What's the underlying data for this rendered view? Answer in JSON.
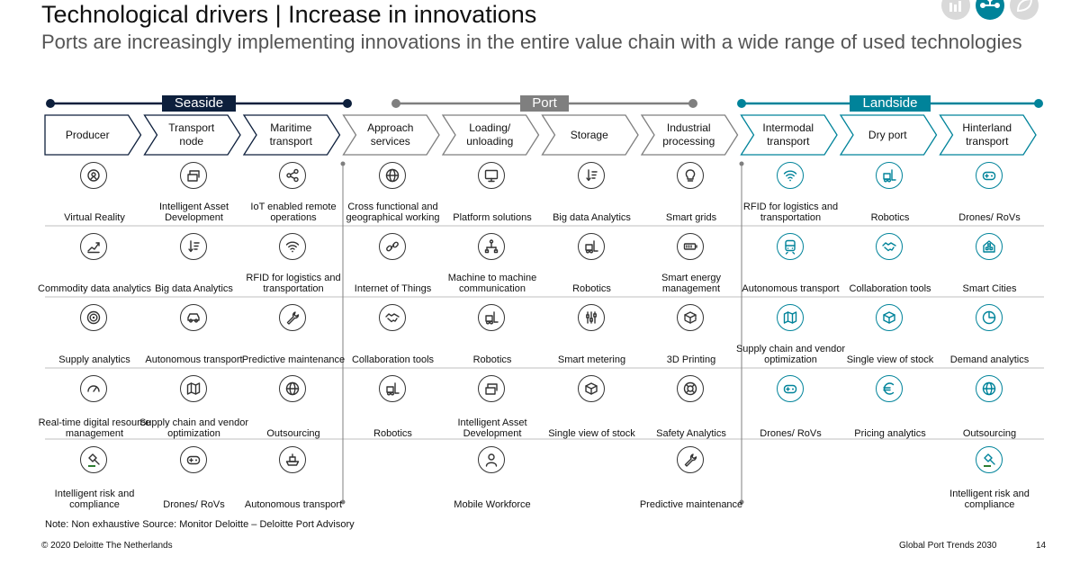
{
  "title": "Technological drivers | Increase in innovations",
  "subtitle": "Ports are increasingly implementing innovations in the entire value chain with a wide range of used technologies",
  "top_icons": [
    "factory-icon",
    "network-icon",
    "leaf-icon"
  ],
  "bands": [
    {
      "label": "Seaside",
      "color": "#0d1f3c"
    },
    {
      "label": "Port",
      "color": "#7f7f7f"
    },
    {
      "label": "Landside",
      "color": "#00839a"
    }
  ],
  "steps": [
    "Producer",
    "Transport node",
    "Maritime transport",
    "Approach services",
    "Loading/ unloading",
    "Storage",
    "Industrial processing",
    "Intermodal transport",
    "Dry port",
    "Hinterland transport"
  ],
  "columns": [
    [
      {
        "label": "Virtual Reality",
        "icon": "vr-icon"
      },
      {
        "label": "Commodity data analytics",
        "icon": "chart-icon"
      },
      {
        "label": "Supply analytics",
        "icon": "target-icon"
      },
      {
        "label": "Real-time digital resource management",
        "icon": "gauge-icon"
      },
      {
        "label": "Intelligent risk and compliance",
        "icon": "gavel-icon"
      }
    ],
    [
      {
        "label": "Intelligent Asset Development",
        "icon": "crane-icon"
      },
      {
        "label": "Big data Analytics",
        "icon": "data-icon"
      },
      {
        "label": "Autonomous transport",
        "icon": "car-icon"
      },
      {
        "label": "Supply chain and vendor optimization",
        "icon": "map-icon"
      },
      {
        "label": "Drones/ RoVs",
        "icon": "gamepad-icon"
      }
    ],
    [
      {
        "label": "IoT enabled remote operations",
        "icon": "share-icon"
      },
      {
        "label": "RFID for logistics and transportation",
        "icon": "wifi-icon"
      },
      {
        "label": "Predictive maintenance",
        "icon": "wrench-icon"
      },
      {
        "label": "Outsourcing",
        "icon": "globe-icon"
      },
      {
        "label": "Autonomous transport",
        "icon": "ship-icon"
      }
    ],
    [
      {
        "label": "Cross functional and geographical working",
        "icon": "globe-icon"
      },
      {
        "label": "Internet of Things",
        "icon": "link-icon"
      },
      {
        "label": "Collaboration tools",
        "icon": "handshake-icon"
      },
      {
        "label": "Robotics",
        "icon": "forklift-icon"
      }
    ],
    [
      {
        "label": "Platform solutions",
        "icon": "monitor-icon"
      },
      {
        "label": "Machine to machine communication",
        "icon": "network-icon"
      },
      {
        "label": "Robotics",
        "icon": "forklift-icon"
      },
      {
        "label": "Intelligent Asset Development",
        "icon": "crane-icon"
      },
      {
        "label": "Mobile Workforce",
        "icon": "person-icon"
      }
    ],
    [
      {
        "label": "Big data Analytics",
        "icon": "data-icon"
      },
      {
        "label": "Robotics",
        "icon": "forklift-icon"
      },
      {
        "label": "Smart metering",
        "icon": "sliders-icon"
      },
      {
        "label": "Single view of stock",
        "icon": "box-icon"
      }
    ],
    [
      {
        "label": "Smart grids",
        "icon": "bulb-icon"
      },
      {
        "label": "Smart energy management",
        "icon": "battery-icon"
      },
      {
        "label": "3D Printing",
        "icon": "cube-icon"
      },
      {
        "label": "Safety Analytics",
        "icon": "lifebuoy-icon"
      },
      {
        "label": "Predictive maintenance",
        "icon": "wrench-icon"
      }
    ],
    [
      {
        "label": "RFID for logistics and transportation",
        "icon": "wifi-icon"
      },
      {
        "label": "Autonomous transport",
        "icon": "train-icon"
      },
      {
        "label": "Supply chain and vendor optimization",
        "icon": "map-icon"
      },
      {
        "label": "Drones/ RoVs",
        "icon": "gamepad-icon"
      }
    ],
    [
      {
        "label": "Robotics",
        "icon": "forklift-icon"
      },
      {
        "label": "Collaboration tools",
        "icon": "handshake-icon"
      },
      {
        "label": "Single view of stock",
        "icon": "box-icon"
      },
      {
        "label": "Pricing analytics",
        "icon": "euro-icon"
      }
    ],
    [
      {
        "label": "Drones/ RoVs",
        "icon": "gamepad-icon"
      },
      {
        "label": "Smart Cities",
        "icon": "city-icon"
      },
      {
        "label": "Demand analytics",
        "icon": "pie-icon"
      },
      {
        "label": "Outsourcing",
        "icon": "globe-icon"
      },
      {
        "label": "Intelligent risk and compliance",
        "icon": "gavel-icon"
      }
    ]
  ],
  "note": "Note: Non exhaustive Source: Monitor Deloitte – Deloitte Port Advisory",
  "copyright": "© 2020 Deloitte The Netherlands",
  "footer_title": "Global Port Trends 2030",
  "page_number": "14"
}
